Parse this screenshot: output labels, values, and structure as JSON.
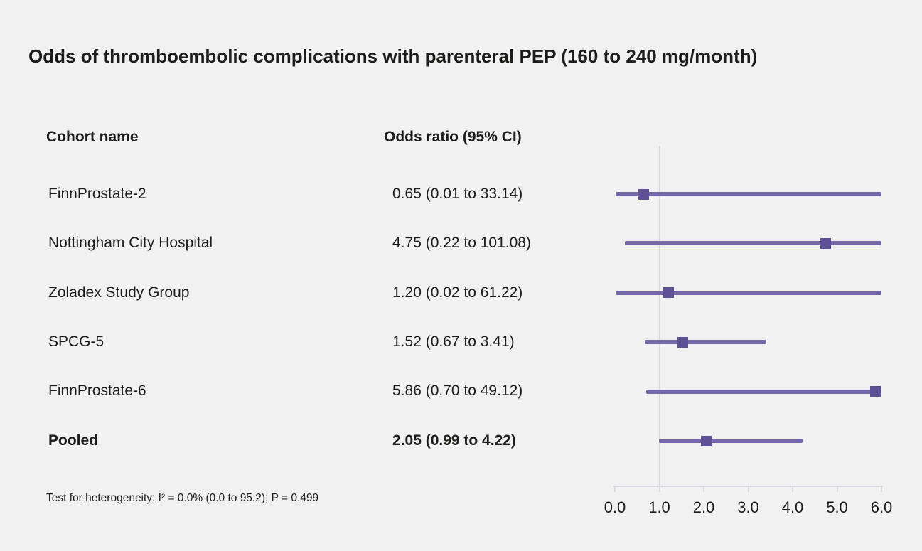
{
  "title": "Odds of thromboembolic complications with parenteral PEP (160 to 240 mg/month)",
  "columns": {
    "cohort": "Cohort name",
    "odds_ratio": "Odds ratio (95% CI)"
  },
  "footnote": "Test for heterogeneity: I² = 0.0% (0.0 to 95.2); P = 0.499",
  "colors": {
    "background": "#f2f1f1",
    "text": "#1d1d1b",
    "marker": "#5d5096",
    "line": "#7367a8",
    "grid": "#d9d7dd"
  },
  "chart_data": {
    "type": "forest",
    "title": "Odds of thromboembolic complications with parenteral PEP (160 to 240 mg/month)",
    "xlabel": "",
    "ylabel": "",
    "xlim": [
      0.0,
      6.0
    ],
    "xticks": [
      0.0,
      1.0,
      2.0,
      3.0,
      4.0,
      5.0,
      6.0
    ],
    "xtick_labels": [
      "0.0",
      "1.0",
      "2.0",
      "3.0",
      "4.0",
      "5.0",
      "6.0"
    ],
    "reference_line": 1.0,
    "grid": false,
    "rows": [
      {
        "label": "FinnProstate-2",
        "or": 0.65,
        "ci_low": 0.01,
        "ci_high": 33.14,
        "or_text": "0.65 (0.01 to 33.14)",
        "bold": false
      },
      {
        "label": "Nottingham City Hospital",
        "or": 4.75,
        "ci_low": 0.22,
        "ci_high": 101.08,
        "or_text": "4.75 (0.22 to 101.08)",
        "bold": false
      },
      {
        "label": "Zoladex Study Group",
        "or": 1.2,
        "ci_low": 0.02,
        "ci_high": 61.22,
        "or_text": "1.20 (0.02 to 61.22)",
        "bold": false
      },
      {
        "label": "SPCG-5",
        "or": 1.52,
        "ci_low": 0.67,
        "ci_high": 3.41,
        "or_text": "1.52 (0.67 to 3.41)",
        "bold": false
      },
      {
        "label": "FinnProstate-6",
        "or": 5.86,
        "ci_low": 0.7,
        "ci_high": 49.12,
        "or_text": "5.86 (0.70 to 49.12)",
        "bold": false
      },
      {
        "label": "Pooled",
        "or": 2.05,
        "ci_low": 0.99,
        "ci_high": 4.22,
        "or_text": "2.05 (0.99 to 4.22)",
        "bold": true
      }
    ]
  }
}
